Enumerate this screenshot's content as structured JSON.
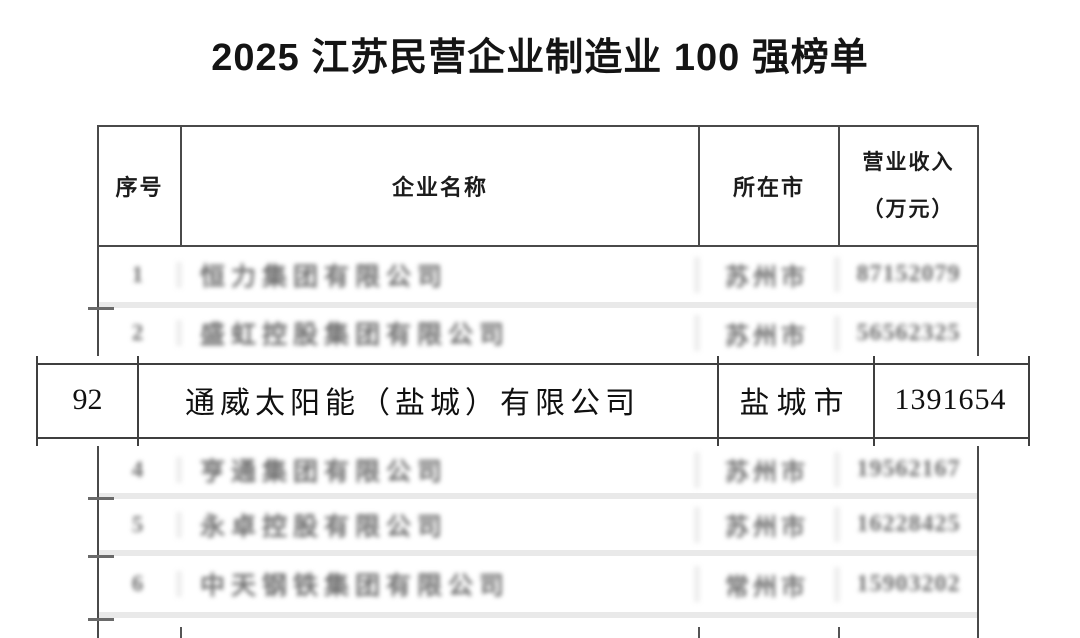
{
  "title": "2025 江苏民营企业制造业 100 强榜单",
  "table": {
    "headers": {
      "rank": "序号",
      "company": "企业名称",
      "city": "所在市",
      "revenue_line1": "营业收入",
      "revenue_line2": "（万元）"
    },
    "rows_blurred": [
      {
        "rank": "1",
        "company": "恒力集团有限公司",
        "city": "苏州市",
        "revenue": "87152079"
      },
      {
        "rank": "2",
        "company": "盛虹控股集团有限公司",
        "city": "苏州市",
        "revenue": "56562325"
      },
      {
        "rank": "4",
        "company": "亨通集团有限公司",
        "city": "苏州市",
        "revenue": "19562167"
      },
      {
        "rank": "5",
        "company": "永卓控股有限公司",
        "city": "苏州市",
        "revenue": "16228425"
      },
      {
        "rank": "6",
        "company": "中天钢铁集团有限公司",
        "city": "常州市",
        "revenue": "15903202"
      }
    ],
    "highlight_row": {
      "rank": "92",
      "company": "通威太阳能（盐城）有限公司",
      "city": "盐城市",
      "revenue": "1391654"
    }
  },
  "colors": {
    "border_dark": "#4a4a4a",
    "border_blurred": "#e9e9e9",
    "text": "#141414",
    "text_blurred": "#6e6e6e",
    "background": "#ffffff"
  }
}
